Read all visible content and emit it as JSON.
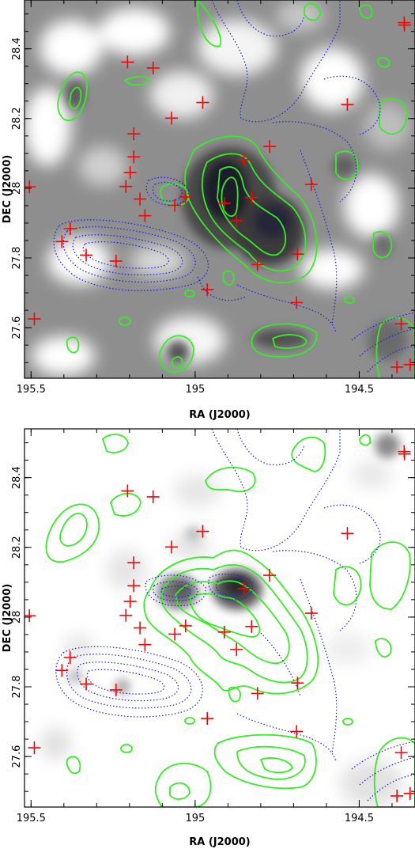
{
  "chart_data": [
    {
      "type": "scatter",
      "panel": "top",
      "xlabel": "RA (J2000)",
      "ylabel": "DEC (J2000)",
      "xlim": [
        195.52,
        194.33
      ],
      "ylim": [
        27.455,
        28.54
      ],
      "xticks": [
        "195.5",
        "195",
        "194.5"
      ],
      "yticks": [
        "27.6",
        "27.8",
        "28",
        "28.2",
        "28.4"
      ],
      "background": "grayscale image",
      "colors": {
        "crosses": "#ff0000",
        "solid_contours": "#33ee22",
        "dotted_contours": "#1a1aee"
      }
    },
    {
      "type": "scatter",
      "panel": "bottom",
      "xlabel": "RA (J2000)",
      "ylabel": "DEC (J2000)",
      "xlim": [
        195.52,
        194.33
      ],
      "ylim": [
        27.455,
        28.54
      ],
      "xticks": [
        "195.5",
        "195",
        "194.5"
      ],
      "yticks": [
        "27.6",
        "27.8",
        "28",
        "28.2",
        "28.4"
      ],
      "background": "grayscale image",
      "colors": {
        "crosses": "#ff0000",
        "solid_contours": "#33ee22",
        "dotted_contours": "#1a1aee"
      }
    }
  ],
  "sources": [
    {
      "ra": 194.363,
      "dec": 28.475
    },
    {
      "ra": 194.362,
      "dec": 28.468
    },
    {
      "ra": 195.206,
      "dec": 28.362
    },
    {
      "ra": 195.128,
      "dec": 28.345
    },
    {
      "ra": 194.977,
      "dec": 28.246
    },
    {
      "ra": 194.536,
      "dec": 28.24
    },
    {
      "ra": 195.072,
      "dec": 28.201
    },
    {
      "ra": 195.187,
      "dec": 28.156
    },
    {
      "ra": 194.773,
      "dec": 28.12
    },
    {
      "ra": 195.187,
      "dec": 28.09
    },
    {
      "ra": 194.851,
      "dec": 28.082
    },
    {
      "ra": 195.198,
      "dec": 28.045
    },
    {
      "ra": 194.646,
      "dec": 28.011
    },
    {
      "ra": 195.505,
      "dec": 28.004
    },
    {
      "ra": 195.211,
      "dec": 28.005
    },
    {
      "ra": 195.029,
      "dec": 27.975
    },
    {
      "ra": 195.168,
      "dec": 27.969
    },
    {
      "ra": 194.828,
      "dec": 27.973
    },
    {
      "ra": 194.911,
      "dec": 27.957
    },
    {
      "ra": 195.062,
      "dec": 27.951
    },
    {
      "ra": 195.153,
      "dec": 27.921
    },
    {
      "ra": 194.874,
      "dec": 27.907
    },
    {
      "ra": 195.381,
      "dec": 27.884
    },
    {
      "ra": 195.406,
      "dec": 27.847
    },
    {
      "ra": 194.688,
      "dec": 27.811
    },
    {
      "ra": 195.332,
      "dec": 27.808
    },
    {
      "ra": 195.241,
      "dec": 27.791
    },
    {
      "ra": 194.81,
      "dec": 27.781
    },
    {
      "ra": 194.963,
      "dec": 27.709
    },
    {
      "ra": 194.691,
      "dec": 27.672
    },
    {
      "ra": 195.49,
      "dec": 27.625
    },
    {
      "ra": 194.372,
      "dec": 27.611
    },
    {
      "ra": 194.385,
      "dec": 27.487
    },
    {
      "ra": 194.345,
      "dec": 27.494
    }
  ]
}
